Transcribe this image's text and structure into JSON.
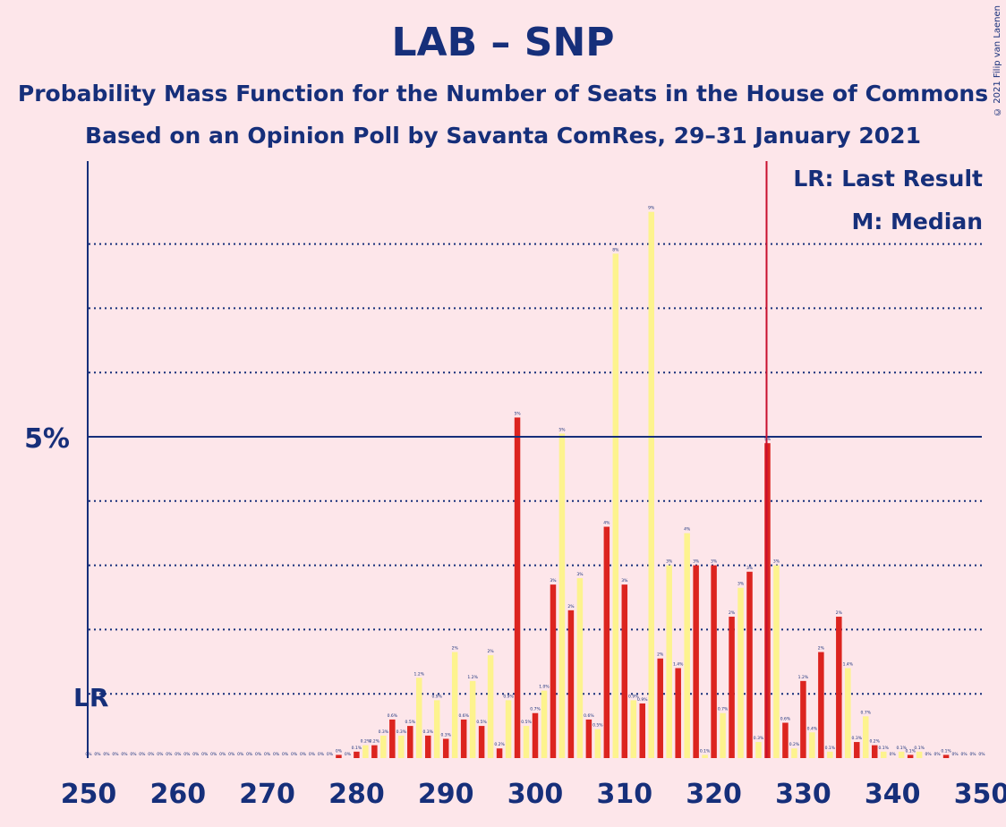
{
  "title": "LAB – SNP",
  "subtitle1": "Probability Mass Function for the Number of Seats in the House of Commons",
  "subtitle2": "Based on an Opinion Poll by Savanta ComRes, 29–31 January 2021",
  "credit": "© 2021 Filip van Laenen",
  "legend": {
    "lr": "LR: Last Result",
    "median": "M: Median"
  },
  "colors": {
    "background": "#fde6ea",
    "lab": "#dc241f",
    "snp": "#fdf38e",
    "axis": "#162f7a",
    "median_line": "#c8102e"
  },
  "chart_data": {
    "type": "bar",
    "xlim": [
      250,
      350
    ],
    "ylim": [
      0,
      9.3
    ],
    "x_ticks": [
      250,
      260,
      270,
      280,
      290,
      300,
      310,
      320,
      330,
      340,
      350
    ],
    "y_tick_label": "5%",
    "y_tick_value": 5,
    "y_grid_values": [
      1,
      2,
      3,
      4,
      5,
      6,
      7,
      8
    ],
    "last_result": 250,
    "last_result_label": "LR",
    "median": 326,
    "series": [
      {
        "party": "LAB",
        "points": [
          [
            250,
            0
          ],
          [
            252,
            0
          ],
          [
            254,
            0
          ],
          [
            256,
            0
          ],
          [
            258,
            0
          ],
          [
            260,
            0
          ],
          [
            262,
            0
          ],
          [
            264,
            0
          ],
          [
            266,
            0
          ],
          [
            268,
            0
          ],
          [
            270,
            0
          ],
          [
            272,
            0
          ],
          [
            274,
            0
          ],
          [
            276,
            0
          ],
          [
            278,
            0.05
          ],
          [
            280,
            0.1
          ],
          [
            282,
            0.2
          ],
          [
            284,
            0.6
          ],
          [
            286,
            0.5
          ],
          [
            288,
            0.35
          ],
          [
            290,
            0.3
          ],
          [
            292,
            0.6
          ],
          [
            294,
            0.5
          ],
          [
            296,
            0.15
          ],
          [
            298,
            5.3
          ],
          [
            300,
            0.7
          ],
          [
            302,
            2.7
          ],
          [
            304,
            2.3
          ],
          [
            306,
            0.6
          ],
          [
            308,
            3.6
          ],
          [
            310,
            2.7
          ],
          [
            312,
            0.85
          ],
          [
            314,
            1.55
          ],
          [
            316,
            1.4
          ],
          [
            318,
            3.0
          ],
          [
            320,
            3.0
          ],
          [
            322,
            2.2
          ],
          [
            324,
            2.9
          ],
          [
            326,
            4.9
          ],
          [
            328,
            0.55
          ],
          [
            330,
            1.2
          ],
          [
            332,
            1.65
          ],
          [
            334,
            2.2
          ],
          [
            336,
            0.25
          ],
          [
            338,
            0.2
          ],
          [
            340,
            0
          ],
          [
            342,
            0.05
          ],
          [
            344,
            0
          ],
          [
            346,
            0.05
          ],
          [
            348,
            0
          ],
          [
            350,
            0
          ]
        ]
      },
      {
        "party": "SNP",
        "points": [
          [
            251,
            0
          ],
          [
            253,
            0
          ],
          [
            255,
            0
          ],
          [
            257,
            0
          ],
          [
            259,
            0
          ],
          [
            261,
            0
          ],
          [
            263,
            0
          ],
          [
            265,
            0
          ],
          [
            267,
            0
          ],
          [
            269,
            0
          ],
          [
            271,
            0
          ],
          [
            273,
            0
          ],
          [
            275,
            0
          ],
          [
            277,
            0
          ],
          [
            279,
            0
          ],
          [
            281,
            0.2
          ],
          [
            283,
            0.35
          ],
          [
            285,
            0.35
          ],
          [
            287,
            1.25
          ],
          [
            289,
            0.9
          ],
          [
            291,
            1.65
          ],
          [
            293,
            1.2
          ],
          [
            295,
            1.6
          ],
          [
            297,
            0.9
          ],
          [
            299,
            0.5
          ],
          [
            301,
            1.05
          ],
          [
            303,
            5.05
          ],
          [
            305,
            2.8
          ],
          [
            307,
            0.45
          ],
          [
            309,
            7.85
          ],
          [
            311,
            0.9
          ],
          [
            313,
            8.5
          ],
          [
            315,
            3.0
          ],
          [
            317,
            3.5
          ],
          [
            319,
            0.05
          ],
          [
            321,
            0.7
          ],
          [
            323,
            2.65
          ],
          [
            325,
            0.25
          ],
          [
            327,
            3.0
          ],
          [
            329,
            0.15
          ],
          [
            331,
            0.4
          ],
          [
            333,
            0.1
          ],
          [
            335,
            1.4
          ],
          [
            337,
            0.65
          ],
          [
            339,
            0.1
          ],
          [
            341,
            0.1
          ],
          [
            343,
            0.1
          ],
          [
            345,
            0
          ],
          [
            347,
            0
          ],
          [
            349,
            0
          ]
        ]
      }
    ],
    "bar_labels": [
      [
        250,
        "0%"
      ],
      [
        251,
        "0%"
      ],
      [
        252,
        "0%"
      ],
      [
        253,
        "0%"
      ],
      [
        254,
        "0%"
      ],
      [
        255,
        "0%"
      ],
      [
        256,
        "0%"
      ],
      [
        257,
        "0%"
      ],
      [
        258,
        "0%"
      ],
      [
        259,
        "0%"
      ],
      [
        260,
        "0%"
      ],
      [
        261,
        "0%"
      ],
      [
        262,
        "0%"
      ],
      [
        263,
        "0%"
      ],
      [
        264,
        "0%"
      ],
      [
        265,
        "0%"
      ],
      [
        266,
        "0%"
      ],
      [
        267,
        "0%"
      ],
      [
        268,
        "0%"
      ],
      [
        269,
        "0%"
      ],
      [
        270,
        "0%"
      ],
      [
        271,
        "0%"
      ],
      [
        272,
        "0%"
      ],
      [
        273,
        "0%"
      ],
      [
        274,
        "0%"
      ],
      [
        275,
        "0%"
      ],
      [
        276,
        "0%"
      ],
      [
        277,
        "0%"
      ],
      [
        278,
        "0%"
      ],
      [
        279,
        "0%"
      ],
      [
        280,
        "0.1%"
      ],
      [
        281,
        "0.2%"
      ],
      [
        282,
        "0.2%"
      ],
      [
        283,
        "0.3%"
      ],
      [
        284,
        "0.6%"
      ],
      [
        285,
        "0.3%"
      ],
      [
        286,
        "0.5%"
      ],
      [
        287,
        "1.2%"
      ],
      [
        288,
        "0.3%"
      ],
      [
        289,
        "0.9%"
      ],
      [
        290,
        "0.3%"
      ],
      [
        291,
        "2%"
      ],
      [
        292,
        "0.6%"
      ],
      [
        293,
        "1.2%"
      ],
      [
        294,
        "0.5%"
      ],
      [
        295,
        "2%"
      ],
      [
        296,
        "0.2%"
      ],
      [
        297,
        "0.9%"
      ],
      [
        298,
        "5%"
      ],
      [
        299,
        "0.5%"
      ],
      [
        300,
        "0.7%"
      ],
      [
        301,
        "1.0%"
      ],
      [
        302,
        "3%"
      ],
      [
        303,
        "5%"
      ],
      [
        304,
        "2%"
      ],
      [
        305,
        "3%"
      ],
      [
        306,
        "0.6%"
      ],
      [
        307,
        "0.5%"
      ],
      [
        308,
        "4%"
      ],
      [
        309,
        "8%"
      ],
      [
        310,
        "3%"
      ],
      [
        311,
        "0.9%"
      ],
      [
        312,
        "0.9%"
      ],
      [
        313,
        "9%"
      ],
      [
        314,
        "2%"
      ],
      [
        315,
        "3%"
      ],
      [
        316,
        "1.4%"
      ],
      [
        317,
        "4%"
      ],
      [
        318,
        "3%"
      ],
      [
        319,
        "0.1%"
      ],
      [
        320,
        "3%"
      ],
      [
        321,
        "0.7%"
      ],
      [
        322,
        "2%"
      ],
      [
        323,
        "3%"
      ],
      [
        324,
        "3%"
      ],
      [
        325,
        "0.3%"
      ],
      [
        326,
        "5%"
      ],
      [
        327,
        "3%"
      ],
      [
        328,
        "0.6%"
      ],
      [
        329,
        "0.2%"
      ],
      [
        330,
        "1.2%"
      ],
      [
        331,
        "0.4%"
      ],
      [
        332,
        "2%"
      ],
      [
        333,
        "0.1%"
      ],
      [
        334,
        "2%"
      ],
      [
        335,
        "1.4%"
      ],
      [
        336,
        "0.3%"
      ],
      [
        337,
        "0.7%"
      ],
      [
        338,
        "0.2%"
      ],
      [
        339,
        "0.1%"
      ],
      [
        340,
        "0%"
      ],
      [
        341,
        "0.1%"
      ],
      [
        342,
        "0.1%"
      ],
      [
        343,
        "0.1%"
      ],
      [
        344,
        "0%"
      ],
      [
        345,
        "0%"
      ],
      [
        346,
        "0.1%"
      ],
      [
        347,
        "0%"
      ],
      [
        348,
        "0%"
      ],
      [
        349,
        "0%"
      ],
      [
        350,
        "0%"
      ]
    ]
  }
}
